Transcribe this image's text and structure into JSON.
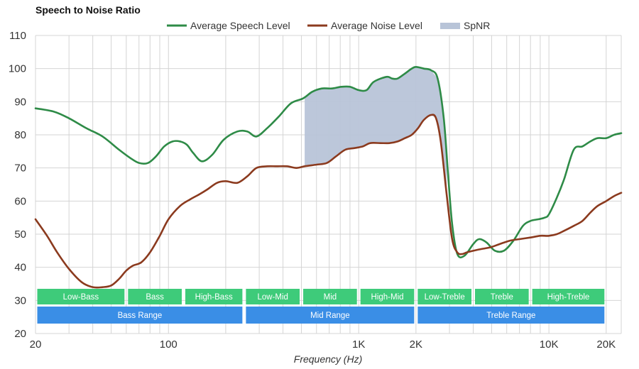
{
  "chart_data": {
    "type": "line",
    "title": "Speech to Noise Ratio",
    "xlabel": "Frequency (Hz)",
    "ylabel": "",
    "xscale": "log",
    "xlim": [
      20,
      24000
    ],
    "ylim": [
      20,
      110
    ],
    "yticks": [
      110,
      100,
      90,
      80,
      70,
      60,
      50,
      40,
      30,
      20
    ],
    "xticks": [
      {
        "value": 20,
        "label": "20"
      },
      {
        "value": 100,
        "label": "100"
      },
      {
        "value": 1000,
        "label": "1K"
      },
      {
        "value": 2000,
        "label": "2K"
      },
      {
        "value": 10000,
        "label": "10K"
      },
      {
        "value": 20000,
        "label": "20K"
      }
    ],
    "grid": true,
    "legend_position": "top-center",
    "legend": [
      {
        "name": "Average Speech Level",
        "color": "#2e8b47",
        "kind": "line"
      },
      {
        "name": "Average Noise Level",
        "color": "#8b3a1e",
        "kind": "line"
      },
      {
        "name": "SpNR",
        "color": "#b8c4d8",
        "kind": "area"
      }
    ],
    "series": [
      {
        "name": "Average Speech Level",
        "color": "#2e8b47",
        "x": [
          20,
          25,
          30,
          37,
          45,
          55,
          63,
          70,
          78,
          86,
          95,
          105,
          115,
          125,
          135,
          150,
          170,
          195,
          230,
          260,
          290,
          330,
          380,
          440,
          510,
          570,
          640,
          720,
          810,
          900,
          1000,
          1100,
          1200,
          1400,
          1500,
          1600,
          1750,
          1900,
          2000,
          2200,
          2400,
          2600,
          2800,
          2950,
          3100,
          3300,
          3600,
          4000,
          4300,
          4700,
          5200,
          5800,
          6500,
          7300,
          8000,
          8800,
          9500,
          10000,
          11000,
          12000,
          13500,
          15000,
          16500,
          18000,
          20000,
          22000,
          24000
        ],
        "y": [
          88,
          87,
          85,
          82,
          79.5,
          75.5,
          73,
          71.5,
          71.5,
          73.5,
          76.5,
          78,
          78,
          77,
          74.5,
          72,
          74,
          78.5,
          81,
          81,
          79.5,
          82,
          85.5,
          89.5,
          91,
          93,
          94,
          94,
          94.5,
          94.5,
          93.5,
          93.5,
          96,
          97.5,
          97,
          97,
          98.5,
          100,
          100.5,
          100,
          99.5,
          97,
          85,
          68,
          53,
          44,
          43.5,
          47,
          48.5,
          47.5,
          45,
          45,
          48,
          52.5,
          54,
          54.5,
          55,
          56,
          61,
          66.5,
          75.5,
          76.5,
          78,
          79,
          79,
          80,
          80.5
        ]
      },
      {
        "name": "Average Noise Level",
        "color": "#8b3a1e",
        "x": [
          20,
          23,
          26,
          30,
          35,
          40,
          45,
          50,
          55,
          60,
          65,
          72,
          80,
          90,
          100,
          115,
          130,
          145,
          160,
          180,
          200,
          230,
          260,
          290,
          330,
          370,
          420,
          470,
          520,
          600,
          680,
          760,
          850,
          950,
          1050,
          1150,
          1300,
          1450,
          1600,
          1750,
          1900,
          2050,
          2200,
          2400,
          2550,
          2700,
          2900,
          3100,
          3300,
          3500,
          3700,
          4000,
          4400,
          4900,
          5500,
          6200,
          7000,
          8000,
          9000,
          10000,
          11000,
          12000,
          13500,
          15000,
          16500,
          18000,
          20000,
          22000,
          24000
        ],
        "y": [
          54.5,
          49.5,
          44.5,
          39.5,
          35.5,
          34,
          34,
          34.5,
          36.5,
          39,
          40.5,
          41.5,
          44.5,
          49.5,
          54.5,
          58.5,
          60.5,
          62,
          63.5,
          65.5,
          66,
          65.5,
          67.5,
          70,
          70.5,
          70.5,
          70.5,
          70,
          70.5,
          71,
          71.5,
          73.5,
          75.5,
          76,
          76.5,
          77.5,
          77.5,
          77.5,
          78,
          79,
          80,
          82,
          84.5,
          86,
          85,
          78,
          62,
          48.5,
          44.5,
          44,
          44.5,
          45,
          45.5,
          46,
          47,
          48,
          48.5,
          49,
          49.5,
          49.5,
          50,
          51,
          52.5,
          54,
          56.5,
          58.5,
          60,
          61.5,
          62.5
        ]
      }
    ],
    "spnr_range": [
      520,
      2900
    ],
    "bands": [
      {
        "name": "Low-Bass",
        "range": [
          20,
          60
        ],
        "color": "#3ecb7a"
      },
      {
        "name": "Bass",
        "range": [
          60,
          120
        ],
        "color": "#3ecb7a"
      },
      {
        "name": "High-Bass",
        "range": [
          120,
          250
        ],
        "color": "#3ecb7a"
      },
      {
        "name": "Low-Mid",
        "range": [
          250,
          500
        ],
        "color": "#3ecb7a"
      },
      {
        "name": "Mid",
        "range": [
          500,
          1000
        ],
        "color": "#3ecb7a"
      },
      {
        "name": "High-Mid",
        "range": [
          1000,
          2000
        ],
        "color": "#3ecb7a"
      },
      {
        "name": "Low-Treble",
        "range": [
          2000,
          4000
        ],
        "color": "#3ecb7a"
      },
      {
        "name": "Treble",
        "range": [
          4000,
          8000
        ],
        "color": "#3ecb7a"
      },
      {
        "name": "High-Treble",
        "range": [
          8000,
          20000
        ],
        "color": "#3ecb7a"
      }
    ],
    "ranges": [
      {
        "name": "Bass Range",
        "range": [
          20,
          250
        ],
        "color": "#3a8ee6"
      },
      {
        "name": "Mid Range",
        "range": [
          250,
          2000
        ],
        "color": "#3a8ee6"
      },
      {
        "name": "Treble Range",
        "range": [
          2000,
          20000
        ],
        "color": "#3a8ee6"
      }
    ]
  }
}
